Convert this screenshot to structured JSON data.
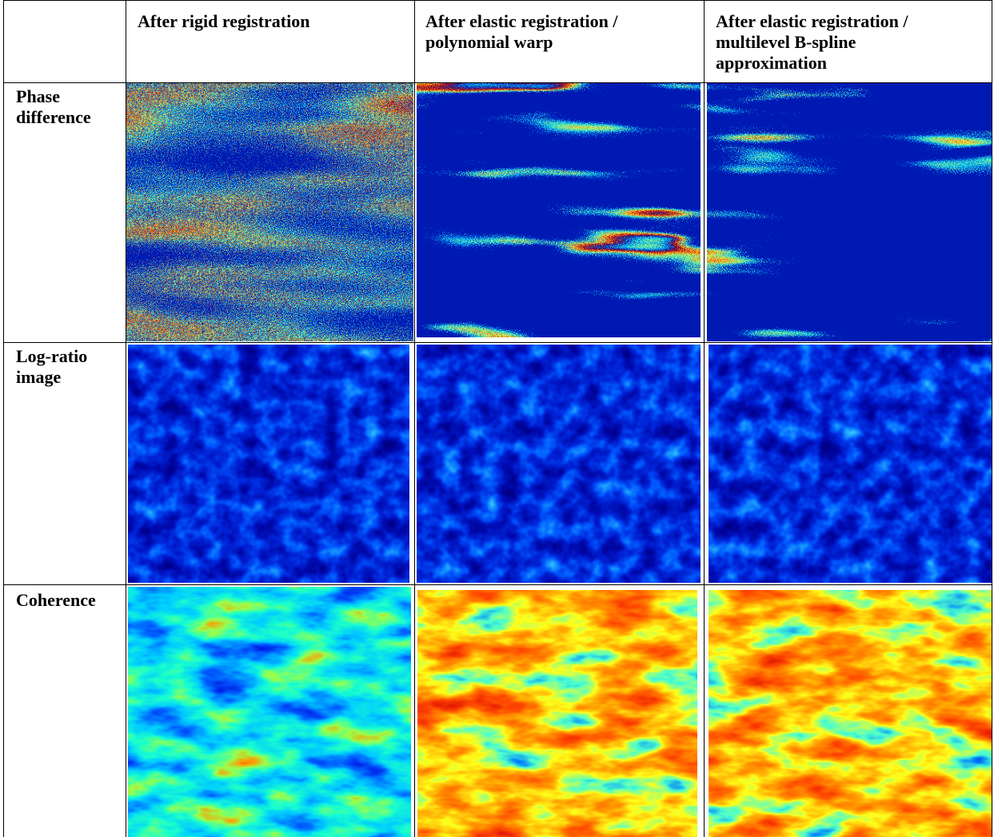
{
  "table": {
    "columns": [
      "After rigid registration",
      "After elastic registration / polynomial warp",
      "After elastic registration / multilevel B-spline approximation"
    ],
    "rows": [
      "Phase difference",
      "Log-ratio image",
      "Coherence"
    ]
  }
}
